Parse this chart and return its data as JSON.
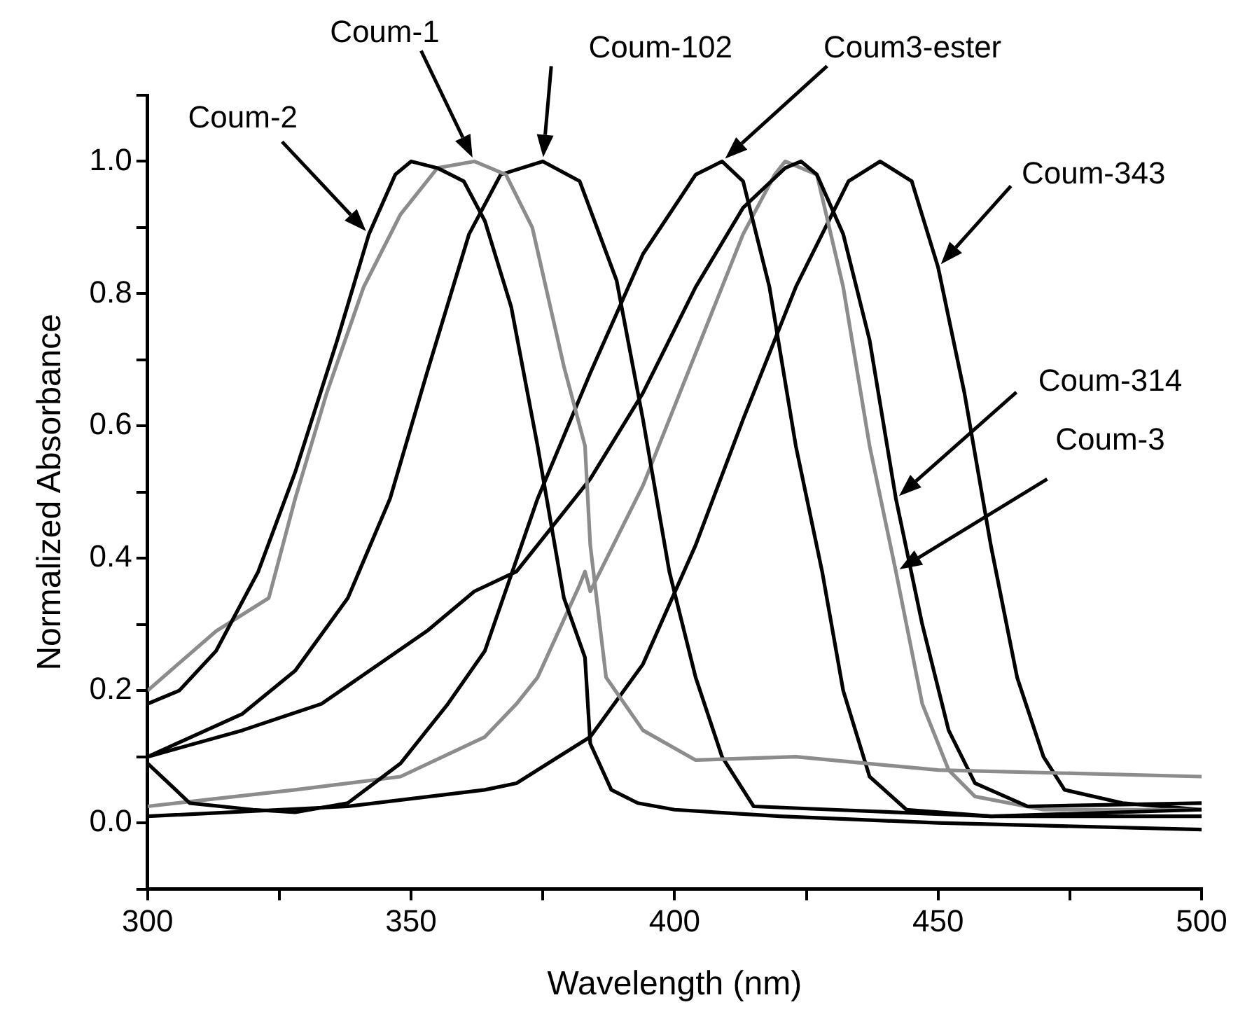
{
  "chart_data": {
    "type": "line",
    "xlabel": "Wavelength (nm)",
    "ylabel": "Normalized Absorbance",
    "xlim": [
      300,
      500
    ],
    "ylim": [
      -0.1,
      1.1
    ],
    "xticks": [
      300,
      {
        "value": 325,
        "label": null
      },
      350,
      {
        "value": 375,
        "label": null
      },
      400,
      {
        "value": 425,
        "label": null
      },
      450,
      {
        "value": 475,
        "label": null
      },
      500
    ],
    "yticks": [
      {
        "value": -0.1,
        "label": null
      },
      {
        "value": 0,
        "label": "0.0"
      },
      {
        "value": 0.1,
        "label": null
      },
      0.2,
      {
        "value": 0.3,
        "label": null
      },
      0.4,
      {
        "value": 0.5,
        "label": null
      },
      0.6,
      {
        "value": 0.7,
        "label": null
      },
      0.8,
      {
        "value": 0.9,
        "label": null
      },
      {
        "value": 1,
        "label": "1.0"
      },
      {
        "value": 1.1,
        "label": null
      }
    ],
    "marker": "none",
    "legend": false,
    "grid": false,
    "series": [
      {
        "color": "#000000",
        "x": [
          300,
          306,
          313,
          321,
          328,
          336,
          342,
          347,
          350,
          355,
          360,
          364,
          369,
          374,
          379,
          383,
          384,
          388,
          393,
          400,
          420,
          450,
          500
        ],
        "values": [
          0.18,
          0.2,
          0.26,
          0.38,
          0.53,
          0.73,
          0.89,
          0.98,
          1.0,
          0.99,
          0.97,
          0.91,
          0.78,
          0.57,
          0.34,
          0.25,
          0.12,
          0.05,
          0.03,
          0.02,
          0.01,
          0.0,
          -0.01
        ]
      },
      {
        "color": "#8c8c8c",
        "x": [
          300,
          313,
          323,
          328,
          334,
          341,
          348,
          355,
          362,
          368,
          373,
          379,
          383,
          384,
          387,
          394,
          404,
          423,
          450,
          500
        ],
        "values": [
          0.2,
          0.29,
          0.34,
          0.49,
          0.65,
          0.81,
          0.92,
          0.99,
          1.0,
          0.98,
          0.9,
          0.69,
          0.57,
          0.42,
          0.22,
          0.14,
          0.095,
          0.1,
          0.08,
          0.07
        ]
      },
      {
        "color": "#000000",
        "x": [
          300,
          318,
          328,
          338,
          346,
          353,
          361,
          367,
          375,
          382,
          389,
          394,
          399,
          404,
          409,
          415,
          430,
          460,
          500
        ],
        "values": [
          0.1,
          0.165,
          0.23,
          0.34,
          0.49,
          0.68,
          0.89,
          0.98,
          1.0,
          0.97,
          0.82,
          0.61,
          0.38,
          0.22,
          0.1,
          0.025,
          0.02,
          0.01,
          0.01
        ]
      },
      {
        "color": "#000000",
        "x": [
          300,
          308,
          320,
          328,
          338,
          348,
          357,
          364,
          374,
          384,
          394,
          404,
          409,
          413,
          418,
          423,
          428,
          432,
          437,
          444,
          460,
          500
        ],
        "values": [
          0.09,
          0.03,
          0.02,
          0.016,
          0.03,
          0.09,
          0.18,
          0.26,
          0.49,
          0.68,
          0.86,
          0.98,
          1.0,
          0.97,
          0.81,
          0.57,
          0.38,
          0.2,
          0.07,
          0.02,
          0.01,
          0.02
        ]
      },
      {
        "color": "#000000",
        "x": [
          300,
          318,
          333,
          343,
          353,
          362,
          370,
          374,
          384,
          394,
          404,
          413,
          421,
          424,
          427,
          432,
          437,
          442,
          447,
          452,
          457,
          467,
          500
        ],
        "values": [
          0.1,
          0.14,
          0.18,
          0.235,
          0.29,
          0.35,
          0.38,
          0.42,
          0.52,
          0.65,
          0.81,
          0.93,
          0.99,
          1.0,
          0.98,
          0.89,
          0.73,
          0.49,
          0.3,
          0.14,
          0.06,
          0.025,
          0.03
        ]
      },
      {
        "color": "#8c8c8c",
        "x": [
          300,
          328,
          348,
          364,
          370,
          374,
          382,
          383,
          384,
          394,
          404,
          413,
          419,
          421,
          427,
          432,
          437,
          442,
          447,
          452,
          457,
          470,
          500
        ],
        "values": [
          0.025,
          0.05,
          0.07,
          0.13,
          0.18,
          0.22,
          0.36,
          0.38,
          0.35,
          0.51,
          0.71,
          0.89,
          0.98,
          1.0,
          0.98,
          0.81,
          0.57,
          0.38,
          0.18,
          0.08,
          0.04,
          0.02,
          0.02
        ]
      },
      {
        "color": "#000000",
        "x": [
          300,
          338,
          364,
          370,
          374,
          384,
          394,
          404,
          413,
          423,
          433,
          439,
          445,
          450,
          455,
          460,
          465,
          470,
          474,
          485,
          500
        ],
        "values": [
          0.01,
          0.025,
          0.05,
          0.06,
          0.08,
          0.13,
          0.24,
          0.42,
          0.61,
          0.81,
          0.97,
          1.0,
          0.97,
          0.84,
          0.65,
          0.42,
          0.22,
          0.1,
          0.05,
          0.03,
          0.02
        ]
      }
    ],
    "annotations": [
      "Coum-2",
      "Coum-1",
      "Coum-102",
      "Coum3-ester",
      "Coum-343",
      "Coum-314",
      "Coum-3"
    ]
  }
}
